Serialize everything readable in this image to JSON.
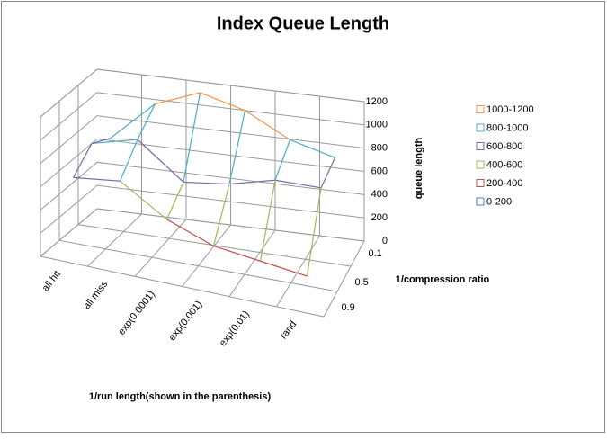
{
  "chart_data": {
    "type": "surface3d",
    "title": "Index Queue Length",
    "x_label": "1/run length(shown in the parenthesis)",
    "depth_label": "1/compression ratio",
    "z_label": "queue length",
    "categories": [
      "all hit",
      "all miss",
      "exp(0.0001)",
      "exp(0.001)",
      "exp(0.01)",
      "rand"
    ],
    "series": [
      {
        "name": "0.1",
        "values": [
          700,
          1050,
          1200,
          1100,
          900,
          800
        ]
      },
      {
        "name": "0.5",
        "values": [
          800,
          900,
          600,
          650,
          750,
          750
        ]
      },
      {
        "name": "0.9",
        "values": [
          650,
          700,
          450,
          300,
          250,
          200
        ]
      }
    ],
    "zlim": [
      0,
      1200
    ],
    "zticks": [
      0,
      200,
      400,
      600,
      800,
      1000,
      1200
    ],
    "legend": [
      {
        "name": "1000-1200",
        "color": "#f79646",
        "range": [
          1000,
          1200
        ]
      },
      {
        "name": "800-1000",
        "color": "#4bacc6",
        "range": [
          800,
          1000
        ]
      },
      {
        "name": "600-800",
        "color": "#8064a2",
        "range": [
          600,
          800
        ]
      },
      {
        "name": "400-600",
        "color": "#9bbb59",
        "range": [
          400,
          600
        ]
      },
      {
        "name": "200-400",
        "color": "#c0504d",
        "range": [
          200,
          400
        ]
      },
      {
        "name": "0-200",
        "color": "#4f81bd",
        "range": [
          0,
          200
        ]
      }
    ]
  }
}
